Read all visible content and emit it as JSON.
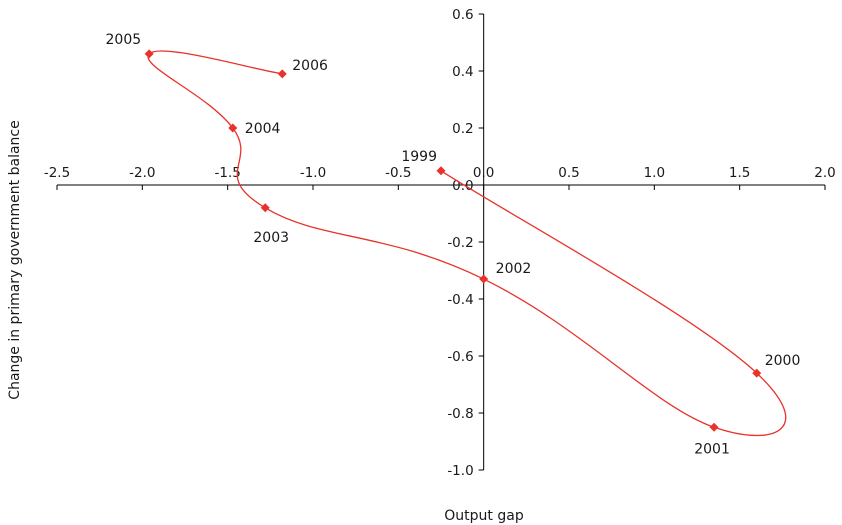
{
  "chart_data": {
    "type": "line",
    "title": "",
    "xlabel": "Output gap",
    "ylabel": "Change in primary government balance",
    "xlim": [
      -2.5,
      2.0
    ],
    "ylim": [
      -1.0,
      0.6
    ],
    "x_ticks": [
      "-2.5",
      "-2.0",
      "-1.5",
      "-1.0",
      "-0.5",
      "0.0",
      "0.5",
      "1.0",
      "1.5",
      "2.0"
    ],
    "y_ticks": [
      "-1.0",
      "-0.8",
      "-0.6",
      "-0.4",
      "-0.2",
      "0.0",
      "0.2",
      "0.4",
      "0.6"
    ],
    "grid": false,
    "legend": "none",
    "line_style": "smoothed",
    "color": "#e8332a",
    "marker": "diamond",
    "series": [
      {
        "points": [
          {
            "label": "1999",
            "x": -0.25,
            "y": 0.05
          },
          {
            "label": "2000",
            "x": 1.6,
            "y": -0.66
          },
          {
            "label": "2001",
            "x": 1.35,
            "y": -0.85
          },
          {
            "label": "2002",
            "x": 0.0,
            "y": -0.33
          },
          {
            "label": "2003",
            "x": -1.28,
            "y": -0.08
          },
          {
            "label": "2004",
            "x": -1.47,
            "y": 0.2
          },
          {
            "label": "2005",
            "x": -1.96,
            "y": 0.46
          },
          {
            "label": "2006",
            "x": -1.18,
            "y": 0.39
          }
        ]
      }
    ]
  }
}
